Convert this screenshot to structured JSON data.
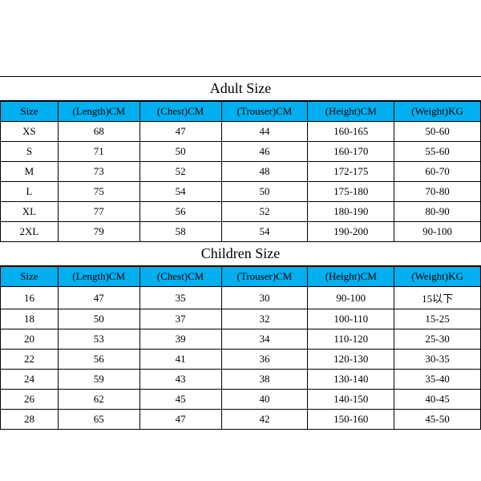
{
  "adult": {
    "title": "Adult Size",
    "columns": [
      "Size",
      "(Length)CM",
      "(Chest)CM",
      "(Trouser)CM",
      "(Height)CM",
      "(Weight)KG"
    ],
    "rows": [
      [
        "XS",
        "68",
        "47",
        "44",
        "160-165",
        "50-60"
      ],
      [
        "S",
        "71",
        "50",
        "46",
        "160-170",
        "55-60"
      ],
      [
        "M",
        "73",
        "52",
        "48",
        "172-175",
        "60-70"
      ],
      [
        "L",
        "75",
        "54",
        "50",
        "175-180",
        "70-80"
      ],
      [
        "XL",
        "77",
        "56",
        "52",
        "180-190",
        "80-90"
      ],
      [
        "2XL",
        "79",
        "58",
        "54",
        "190-200",
        "90-100"
      ]
    ]
  },
  "children": {
    "title": "Children Size",
    "columns": [
      "Size",
      "(Length)CM",
      "(Chest)CM",
      "(Trouser)CM",
      "(Height)CM",
      "(Weight)KG"
    ],
    "rows": [
      [
        "16",
        "47",
        "35",
        "30",
        "90-100",
        "15以下"
      ],
      [
        "18",
        "50",
        "37",
        "32",
        "100-110",
        "15-25"
      ],
      [
        "20",
        "53",
        "39",
        "34",
        "110-120",
        "25-30"
      ],
      [
        "22",
        "56",
        "41",
        "36",
        "120-130",
        "30-35"
      ],
      [
        "24",
        "59",
        "43",
        "38",
        "130-140",
        "35-40"
      ],
      [
        "26",
        "62",
        "45",
        "40",
        "140-150",
        "40-45"
      ],
      [
        "28",
        "65",
        "47",
        "42",
        "150-160",
        "45-50"
      ]
    ]
  },
  "header_bg": "#00b0f0"
}
